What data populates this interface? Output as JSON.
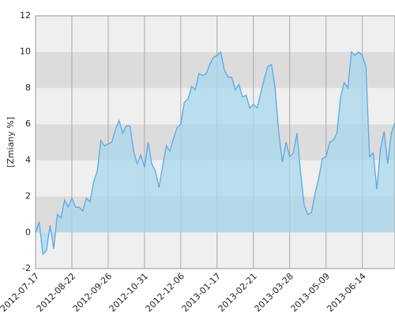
{
  "chart_data": {
    "type": "area",
    "ylabel": "[Zmiany %]",
    "categories": [
      "2012-07-17",
      null,
      null,
      null,
      null,
      null,
      null,
      null,
      null,
      null,
      "2012-08-22",
      null,
      null,
      null,
      null,
      null,
      null,
      null,
      null,
      null,
      "2012-09-26",
      null,
      null,
      null,
      null,
      null,
      null,
      null,
      null,
      null,
      "2012-10-31",
      null,
      null,
      null,
      null,
      null,
      null,
      null,
      null,
      null,
      "2012-12-06",
      null,
      null,
      null,
      null,
      null,
      null,
      null,
      null,
      null,
      "2013-01-17",
      null,
      null,
      null,
      null,
      null,
      null,
      null,
      null,
      null,
      "2013-02-21",
      null,
      null,
      null,
      null,
      null,
      null,
      null,
      null,
      null,
      "2013-03-28",
      null,
      null,
      null,
      null,
      null,
      null,
      null,
      null,
      null,
      "2013-05-09",
      null,
      null,
      null,
      null,
      null,
      null,
      null,
      null,
      null,
      "2013-06-14",
      null,
      null,
      null,
      null,
      null,
      null,
      null,
      null,
      null
    ],
    "values": [
      0,
      0.6,
      -1.2,
      -1.0,
      0.4,
      -0.9,
      1.0,
      0.8,
      1.8,
      1.4,
      1.9,
      1.4,
      1.4,
      1.2,
      1.9,
      1.7,
      2.8,
      3.4,
      5.1,
      4.8,
      4.9,
      5.0,
      5.7,
      6.2,
      5.5,
      5.9,
      5.9,
      4.5,
      3.8,
      4.3,
      3.6,
      5.0,
      3.8,
      3.4,
      2.5,
      3.7,
      4.8,
      4.5,
      5.2,
      5.8,
      6.0,
      7.2,
      7.4,
      8.1,
      7.9,
      8.8,
      8.7,
      8.8,
      9.3,
      9.7,
      9.8,
      10.0,
      9.0,
      8.6,
      8.6,
      7.9,
      8.2,
      7.5,
      7.6,
      6.9,
      7.1,
      6.9,
      7.7,
      8.5,
      9.2,
      9.3,
      8.0,
      5.5,
      3.9,
      5.0,
      4.2,
      4.4,
      5.5,
      3.3,
      1.5,
      1.0,
      1.1,
      2.2,
      3.0,
      4.1,
      4.2,
      5.0,
      5.1,
      5.5,
      7.5,
      8.3,
      8.0,
      10.0,
      9.8,
      10.0,
      9.8,
      9.2,
      4.2,
      4.4,
      2.4,
      4.6,
      5.6,
      3.8,
      5.5,
      6.1
    ],
    "line_color": "#5aa9e6",
    "fill_color": "#a8d8ee",
    "band_colors": [
      "#efefef",
      "#dcdcdc"
    ],
    "ylim": [
      -2,
      12
    ],
    "yticks": [
      -2,
      0,
      2,
      4,
      6,
      8,
      10,
      12
    ],
    "grid": true
  }
}
